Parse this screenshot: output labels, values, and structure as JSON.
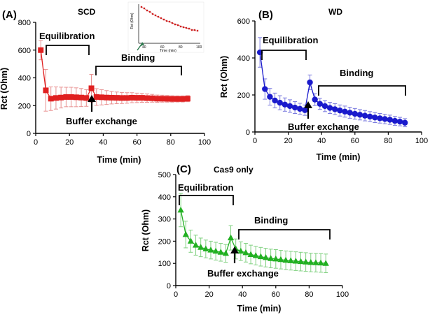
{
  "chart_data": [
    {
      "type": "line",
      "panel_label": "(A)",
      "title": "SCD",
      "xlabel": "Time (min)",
      "ylabel": "Rct (Ohm)",
      "xlim": [
        0,
        100
      ],
      "ylim": [
        0,
        800
      ],
      "xticks": [
        "0",
        "20",
        "40",
        "60",
        "80",
        "100"
      ],
      "yticks": [
        "0",
        "200",
        "400",
        "600",
        "800"
      ],
      "marker": "square",
      "color": "#e02020",
      "error_color": "#e89090",
      "grid": false,
      "series": [
        {
          "x": [
            3,
            6,
            9,
            12,
            15,
            18,
            21,
            24,
            27,
            30,
            33,
            36,
            39,
            42,
            45,
            48,
            51,
            54,
            57,
            60,
            63,
            66,
            69,
            72,
            75,
            78,
            81,
            84,
            87,
            90
          ],
          "values": [
            600,
            310,
            250,
            255,
            258,
            262,
            262,
            260,
            258,
            255,
            325,
            262,
            260,
            258,
            257,
            256,
            255,
            255,
            257,
            256,
            256,
            254,
            253,
            250,
            250,
            249,
            248,
            248,
            248,
            250
          ],
          "errors": [
            70,
            150,
            85,
            80,
            75,
            70,
            70,
            68,
            65,
            60,
            100,
            60,
            55,
            50,
            45,
            42,
            40,
            38,
            36,
            34,
            32,
            30,
            28,
            26,
            25,
            24,
            23,
            22,
            22,
            22
          ]
        }
      ],
      "annotations": {
        "equilibration": "Equilibration",
        "binding": "Binding",
        "buffer_exchange": "Buffer exchange"
      },
      "inset": {
        "ylabel": "Rct (Ohm)",
        "xlabel": "Time (min)",
        "xticks": [
          "40",
          "60",
          "80",
          "100"
        ]
      }
    },
    {
      "type": "line",
      "panel_label": "(B)",
      "title": "WD",
      "xlabel": "Time (min)",
      "ylabel": "Rct (Ohm)",
      "xlim": [
        0,
        100
      ],
      "ylim": [
        0,
        600
      ],
      "xticks": [
        "0",
        "20",
        "40",
        "60",
        "80",
        "100"
      ],
      "yticks": [
        "0",
        "200",
        "400",
        "600"
      ],
      "marker": "circle",
      "color": "#1a1acc",
      "error_color": "#7a7adf",
      "grid": false,
      "series": [
        {
          "x": [
            3,
            6,
            9,
            12,
            15,
            18,
            21,
            24,
            27,
            30,
            33,
            36,
            39,
            42,
            45,
            48,
            51,
            54,
            57,
            60,
            63,
            66,
            69,
            72,
            75,
            78,
            81,
            84,
            87,
            90
          ],
          "values": [
            430,
            232,
            190,
            170,
            158,
            148,
            140,
            132,
            125,
            118,
            268,
            175,
            152,
            140,
            130,
            123,
            116,
            110,
            104,
            98,
            93,
            88,
            83,
            78,
            74,
            70,
            66,
            60,
            56,
            50
          ],
          "errors": [
            80,
            55,
            45,
            40,
            38,
            36,
            34,
            32,
            30,
            28,
            40,
            32,
            30,
            30,
            30,
            30,
            30,
            30,
            30,
            29,
            28,
            28,
            27,
            27,
            26,
            26,
            25,
            24,
            23,
            22
          ]
        }
      ],
      "annotations": {
        "equilibration": "Equilibration",
        "binding": "Binding",
        "buffer_exchange": "Buffer exchange"
      }
    },
    {
      "type": "line",
      "panel_label": "(C)",
      "title": "Cas9 only",
      "xlabel": "Time (min)",
      "ylabel": "Rct (Ohm)",
      "xlim": [
        0,
        100
      ],
      "ylim": [
        0,
        500
      ],
      "xticks": [
        "0",
        "20",
        "40",
        "60",
        "80",
        "100"
      ],
      "yticks": [
        "0",
        "100",
        "200",
        "300",
        "400",
        "500"
      ],
      "marker": "triangle",
      "color": "#22b022",
      "error_color": "#7fd07f",
      "grid": false,
      "series": [
        {
          "x": [
            3,
            6,
            9,
            12,
            15,
            18,
            21,
            24,
            27,
            30,
            33,
            36,
            39,
            42,
            45,
            48,
            51,
            54,
            57,
            60,
            63,
            66,
            69,
            72,
            75,
            78,
            81,
            84,
            87,
            90
          ],
          "values": [
            340,
            230,
            200,
            182,
            172,
            165,
            160,
            155,
            150,
            145,
            215,
            165,
            155,
            148,
            140,
            135,
            130,
            126,
            122,
            120,
            117,
            114,
            112,
            110,
            108,
            106,
            104,
            103,
            102,
            100
          ],
          "errors": [
            75,
            60,
            50,
            45,
            42,
            40,
            40,
            40,
            40,
            40,
            55,
            45,
            42,
            42,
            42,
            42,
            42,
            42,
            42,
            42,
            42,
            42,
            42,
            42,
            42,
            42,
            42,
            42,
            42,
            42
          ]
        }
      ],
      "annotations": {
        "equilibration": "Equilibration",
        "binding": "Binding",
        "buffer_exchange": "Buffer exchange"
      }
    }
  ]
}
